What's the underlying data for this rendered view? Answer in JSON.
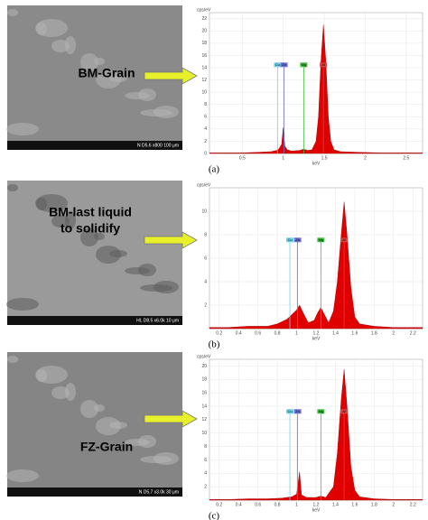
{
  "chart_data": [
    {
      "type": "area",
      "ylabel": "cps/eV",
      "xlabel": "keV",
      "x": [
        0.1,
        0.3,
        0.5,
        0.7,
        0.85,
        0.92,
        0.95,
        0.98,
        1.0,
        1.02,
        1.05,
        1.1,
        1.2,
        1.25,
        1.3,
        1.35,
        1.4,
        1.43,
        1.46,
        1.49,
        1.52,
        1.55,
        1.58,
        1.62,
        1.7,
        1.9,
        2.2,
        2.5,
        2.7
      ],
      "series": [
        {
          "color": "#e00000",
          "values": [
            0.1,
            0.1,
            0.1,
            0.2,
            0.3,
            0.5,
            0.8,
            1.5,
            4.2,
            1.2,
            0.6,
            0.4,
            0.5,
            0.7,
            0.5,
            0.6,
            2,
            6,
            15,
            21,
            15,
            6,
            2,
            0.6,
            0.3,
            0.2,
            0.1,
            0.1,
            0.1
          ]
        }
      ],
      "xlim": [
        0.1,
        2.7
      ],
      "ylim": [
        0,
        23
      ],
      "xticks": [
        0.5,
        1.0,
        1.5,
        2.0,
        2.5
      ],
      "yticks": [
        0,
        2,
        4,
        6,
        8,
        10,
        12,
        14,
        16,
        18,
        20,
        22
      ],
      "grid": true,
      "markers": [
        {
          "label": "Cu",
          "x": 0.93,
          "color": "#6fd3e8"
        },
        {
          "label": "Zn",
          "x": 1.01,
          "color": "#7070d8"
        },
        {
          "label": "Mg",
          "x": 1.25,
          "color": "#40c040"
        },
        {
          "label": "Al",
          "x": 1.49,
          "color": "#e04040"
        }
      ]
    },
    {
      "type": "area",
      "ylabel": "cps/eV",
      "xlabel": "keV",
      "x": [
        0.1,
        0.3,
        0.5,
        0.7,
        0.8,
        0.9,
        0.95,
        1.0,
        1.03,
        1.07,
        1.12,
        1.18,
        1.22,
        1.25,
        1.28,
        1.33,
        1.38,
        1.42,
        1.46,
        1.49,
        1.52,
        1.56,
        1.6,
        1.65,
        1.8,
        2.0,
        2.3
      ],
      "series": [
        {
          "color": "#e00000",
          "values": [
            0.1,
            0.1,
            0.2,
            0.2,
            0.4,
            0.8,
            1.2,
            1.6,
            2.0,
            1.3,
            0.5,
            0.7,
            1.4,
            1.8,
            1.3,
            0.5,
            1.5,
            4,
            8,
            10.8,
            8,
            3.5,
            1,
            0.4,
            0.2,
            0.1,
            0.1
          ]
        }
      ],
      "xlim": [
        0.1,
        2.3
      ],
      "ylim": [
        0,
        12
      ],
      "xticks": [
        0.2,
        0.4,
        0.6,
        0.8,
        1.0,
        1.2,
        1.4,
        1.6,
        1.8,
        2.0,
        2.2
      ],
      "yticks": [
        2,
        4,
        6,
        8,
        10
      ],
      "grid": true,
      "markers": [
        {
          "label": "Cu",
          "x": 0.93,
          "color": "#6fd3e8"
        },
        {
          "label": "Zn",
          "x": 1.01,
          "color": "#7070d8"
        },
        {
          "label": "Mg",
          "x": 1.25,
          "color": "#40c040"
        },
        {
          "label": "Al",
          "x": 1.49,
          "color": "#e04040"
        }
      ]
    },
    {
      "type": "area",
      "ylabel": "cps/eV",
      "xlabel": "keV",
      "x": [
        0.1,
        0.3,
        0.5,
        0.7,
        0.85,
        0.95,
        1.0,
        1.03,
        1.05,
        1.1,
        1.2,
        1.25,
        1.3,
        1.38,
        1.42,
        1.46,
        1.49,
        1.52,
        1.56,
        1.6,
        1.65,
        1.8,
        2.0,
        2.3
      ],
      "series": [
        {
          "color": "#e00000",
          "values": [
            0.1,
            0.1,
            0.2,
            0.2,
            0.3,
            0.5,
            0.9,
            4.2,
            0.8,
            0.4,
            0.4,
            0.6,
            0.4,
            2,
            7,
            15,
            19.5,
            14,
            5,
            1.5,
            0.5,
            0.2,
            0.1,
            0.1
          ]
        }
      ],
      "xlim": [
        0.1,
        2.3
      ],
      "ylim": [
        0,
        21
      ],
      "xticks": [
        0.2,
        0.4,
        0.6,
        0.8,
        1.0,
        1.2,
        1.4,
        1.6,
        1.8,
        2.0,
        2.2
      ],
      "yticks": [
        2,
        4,
        6,
        8,
        10,
        12,
        14,
        16,
        18,
        20
      ],
      "grid": true,
      "markers": [
        {
          "label": "Cu",
          "x": 0.93,
          "color": "#6fd3e8"
        },
        {
          "label": "Zn",
          "x": 1.01,
          "color": "#7070d8"
        },
        {
          "label": "Mg",
          "x": 1.25,
          "color": "#40c040"
        },
        {
          "label": "Al",
          "x": 1.49,
          "color": "#e04040"
        }
      ]
    }
  ],
  "panels": [
    {
      "label": "(a)",
      "image_text": [
        "BM-Grain"
      ],
      "scale_info": "N   D5.6   x800      100 μm"
    },
    {
      "label": "(b)",
      "image_text": [
        "BM-last liquid",
        "to solidify"
      ],
      "scale_info": "HL   D8.5   x6.0k      10 μm"
    },
    {
      "label": "(c)",
      "image_text": [
        "FZ-Grain"
      ],
      "scale_info": "N   D5.7   x3.0k      30 μm"
    }
  ]
}
